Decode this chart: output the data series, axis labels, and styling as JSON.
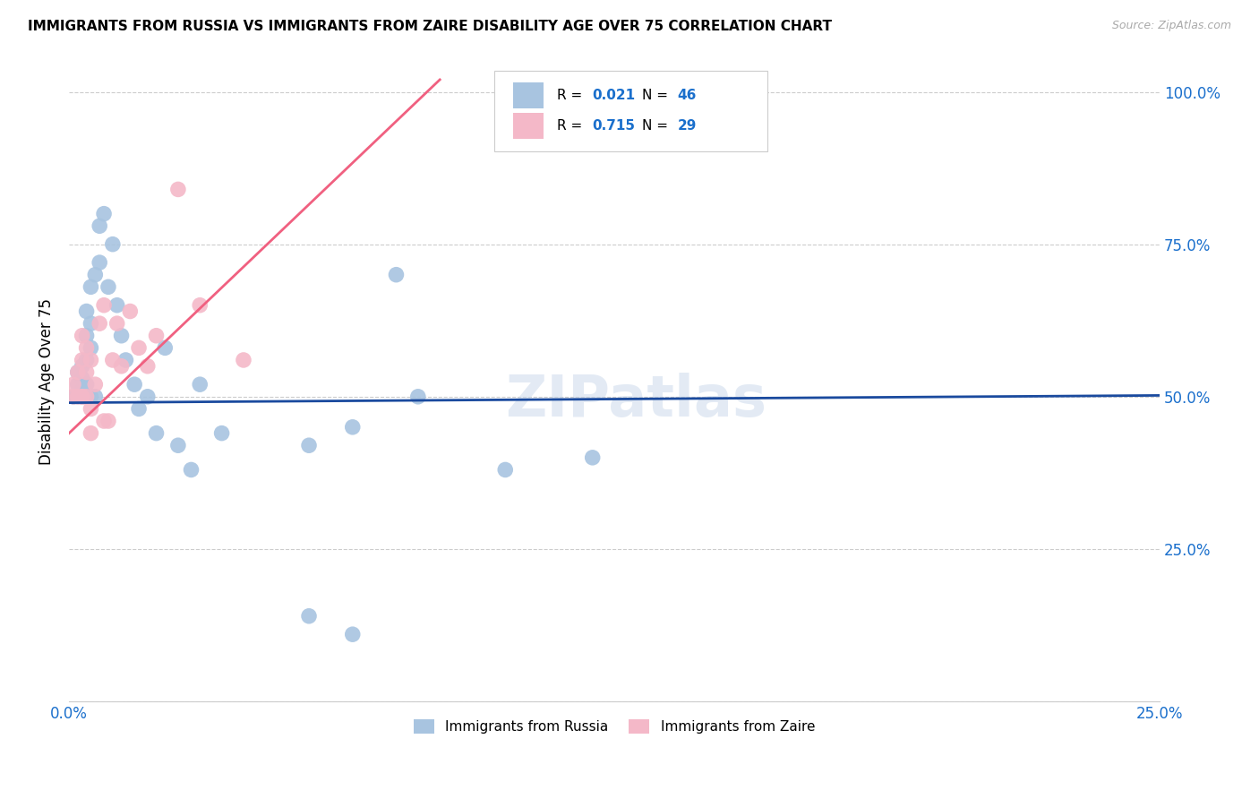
{
  "title": "IMMIGRANTS FROM RUSSIA VS IMMIGRANTS FROM ZAIRE DISABILITY AGE OVER 75 CORRELATION CHART",
  "source": "Source: ZipAtlas.com",
  "ylabel": "Disability Age Over 75",
  "xlim": [
    0.0,
    0.25
  ],
  "ylim": [
    0.0,
    1.05
  ],
  "yticks": [
    0.0,
    0.25,
    0.5,
    0.75,
    1.0
  ],
  "ytick_labels": [
    "",
    "25.0%",
    "50.0%",
    "75.0%",
    "100.0%"
  ],
  "xticks": [
    0.0,
    0.05,
    0.1,
    0.15,
    0.2,
    0.25
  ],
  "xtick_labels": [
    "0.0%",
    "",
    "",
    "",
    "",
    "25.0%"
  ],
  "russia_color": "#a8c4e0",
  "zaire_color": "#f4b8c8",
  "russia_line_color": "#1a4a9e",
  "zaire_line_color": "#f06080",
  "russia_R": 0.021,
  "russia_N": 46,
  "zaire_R": 0.715,
  "zaire_N": 29,
  "legend_label_russia": "Immigrants from Russia",
  "legend_label_zaire": "Immigrants from Zaire",
  "watermark": "ZIPatlas",
  "accent_color": "#1a6fcc",
  "russia_x": [
    0.001,
    0.001,
    0.002,
    0.002,
    0.002,
    0.003,
    0.003,
    0.003,
    0.003,
    0.003,
    0.004,
    0.004,
    0.004,
    0.004,
    0.004,
    0.005,
    0.005,
    0.005,
    0.005,
    0.006,
    0.006,
    0.007,
    0.007,
    0.008,
    0.009,
    0.01,
    0.011,
    0.012,
    0.013,
    0.015,
    0.016,
    0.018,
    0.02,
    0.022,
    0.025,
    0.028,
    0.03,
    0.035,
    0.055,
    0.065,
    0.075,
    0.08,
    0.1,
    0.12,
    0.055,
    0.065
  ],
  "russia_y": [
    0.5,
    0.5,
    0.5,
    0.52,
    0.54,
    0.5,
    0.5,
    0.51,
    0.53,
    0.55,
    0.5,
    0.52,
    0.56,
    0.6,
    0.64,
    0.5,
    0.58,
    0.62,
    0.68,
    0.5,
    0.7,
    0.72,
    0.78,
    0.8,
    0.68,
    0.75,
    0.65,
    0.6,
    0.56,
    0.52,
    0.48,
    0.5,
    0.44,
    0.58,
    0.42,
    0.38,
    0.52,
    0.44,
    0.42,
    0.45,
    0.7,
    0.5,
    0.38,
    0.4,
    0.14,
    0.11
  ],
  "zaire_x": [
    0.001,
    0.001,
    0.002,
    0.002,
    0.003,
    0.003,
    0.003,
    0.003,
    0.004,
    0.004,
    0.004,
    0.005,
    0.005,
    0.005,
    0.006,
    0.007,
    0.008,
    0.008,
    0.009,
    0.01,
    0.011,
    0.012,
    0.014,
    0.016,
    0.018,
    0.02,
    0.025,
    0.03,
    0.04
  ],
  "zaire_y": [
    0.5,
    0.52,
    0.5,
    0.54,
    0.5,
    0.5,
    0.56,
    0.6,
    0.5,
    0.54,
    0.58,
    0.44,
    0.48,
    0.56,
    0.52,
    0.62,
    0.65,
    0.46,
    0.46,
    0.56,
    0.62,
    0.55,
    0.64,
    0.58,
    0.55,
    0.6,
    0.84,
    0.65,
    0.56
  ],
  "russia_trend_x": [
    0.0,
    0.25
  ],
  "russia_trend_y": [
    0.49,
    0.502
  ],
  "zaire_trend_x": [
    0.0,
    0.085
  ],
  "zaire_trend_y": [
    0.44,
    1.02
  ]
}
